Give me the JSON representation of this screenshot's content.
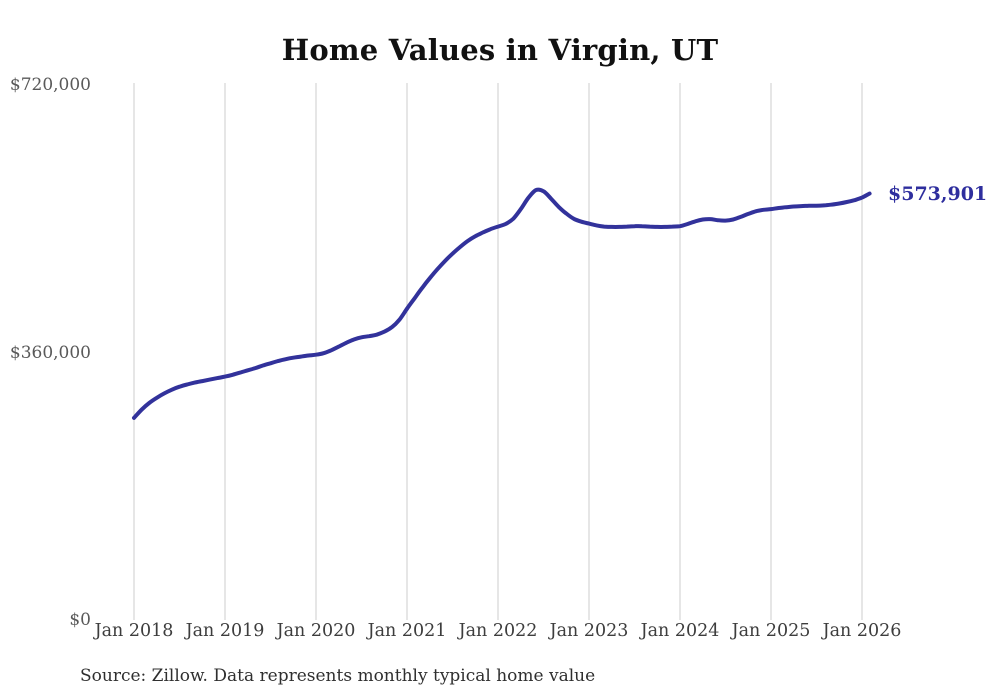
{
  "page": {
    "background": "#ffffff"
  },
  "source_note": "Source: Zillow. Data represents monthly typical home value",
  "chart_data": {
    "type": "line",
    "title": "Home Values in Virgin, UT",
    "x_start": "2018-01",
    "x_interval": "month",
    "values": [
      272000,
      283000,
      292000,
      299000,
      305000,
      310000,
      314000,
      317000,
      319500,
      321500,
      323500,
      325500,
      327500,
      330000,
      333000,
      336000,
      339000,
      342500,
      345500,
      348500,
      351000,
      353000,
      354500,
      356000,
      357000,
      359000,
      363000,
      368000,
      373000,
      377500,
      380500,
      382000,
      384000,
      388000,
      394000,
      404000,
      419000,
      433000,
      447000,
      460000,
      472000,
      483000,
      493000,
      502000,
      510000,
      516500,
      521500,
      526000,
      529500,
      533000,
      540000,
      553000,
      568000,
      578500,
      577000,
      567000,
      556000,
      547000,
      540000,
      536000,
      533500,
      531000,
      529500,
      529000,
      529000,
      529500,
      530000,
      530000,
      529500,
      529000,
      529000,
      529500,
      530000,
      533000,
      536500,
      539000,
      539500,
      538000,
      537500,
      539000,
      542500,
      546500,
      550000,
      552000,
      553000,
      554500,
      555500,
      556500,
      557000,
      557500,
      557500,
      558000,
      559000,
      560500,
      562500,
      565000,
      568500,
      573901
    ],
    "x_ticks": [
      {
        "index": 0,
        "label": "Jan 2018"
      },
      {
        "index": 12,
        "label": "Jan 2019"
      },
      {
        "index": 24,
        "label": "Jan 2020"
      },
      {
        "index": 36,
        "label": "Jan 2021"
      },
      {
        "index": 48,
        "label": "Jan 2022"
      },
      {
        "index": 60,
        "label": "Jan 2023"
      },
      {
        "index": 72,
        "label": "Jan 2024"
      },
      {
        "index": 84,
        "label": "Jan 2025"
      },
      {
        "index": 96,
        "label": "Jan 2026"
      }
    ],
    "y_ticks": [
      {
        "value": 0,
        "label": "$0"
      },
      {
        "value": 360000,
        "label": "$360,000"
      },
      {
        "value": 720000,
        "label": "$720,000"
      }
    ],
    "ylim": [
      0,
      720000
    ],
    "grid": "vertical-only",
    "legend": "none",
    "line_color": "#32329b",
    "grid_color": "#cccccc",
    "end_label": "$573,901",
    "latest_value": 573901
  }
}
